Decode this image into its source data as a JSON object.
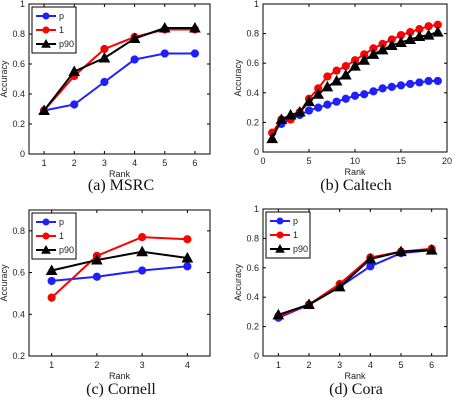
{
  "chart_data": [
    {
      "type": "line",
      "caption": "(a) MSRC",
      "xlabel": "Rank",
      "ylabel": "Accuracy",
      "xlim": [
        0.5,
        6.5
      ],
      "ylim": [
        0,
        1
      ],
      "xticks": [
        1,
        2,
        3,
        4,
        5,
        6
      ],
      "yticks": [
        0,
        0.2,
        0.4,
        0.6,
        0.8,
        1
      ],
      "ytick_labels": [
        "0",
        "0.2",
        "0.4",
        "0.6",
        "0.8",
        "1"
      ],
      "legend_position": "top-left",
      "series": [
        {
          "name": "p",
          "color": "#1f1fff",
          "marker": "circle",
          "x": [
            1,
            2,
            3,
            4,
            5,
            6
          ],
          "y": [
            0.29,
            0.33,
            0.48,
            0.63,
            0.67,
            0.67
          ]
        },
        {
          "name": "1",
          "color": "#ff0000",
          "marker": "circle",
          "x": [
            1,
            2,
            3,
            4,
            5,
            6
          ],
          "y": [
            0.29,
            0.52,
            0.7,
            0.78,
            0.83,
            0.83
          ]
        },
        {
          "name": "p90",
          "color": "#000000",
          "marker": "triangle",
          "x": [
            1,
            2,
            3,
            4,
            5,
            6
          ],
          "y": [
            0.29,
            0.55,
            0.64,
            0.77,
            0.84,
            0.84
          ]
        }
      ]
    },
    {
      "type": "line",
      "caption": "(b) Caltech",
      "xlabel": "Rank",
      "ylabel": "Accuracy",
      "xlim": [
        0,
        20
      ],
      "ylim": [
        0,
        1
      ],
      "xticks": [
        0,
        5,
        10,
        15,
        20
      ],
      "yticks": [
        0,
        0.2,
        0.4,
        0.6,
        0.8,
        1
      ],
      "ytick_labels": [
        "0",
        "0.2",
        "0.4",
        "0.6",
        "0.8",
        "1"
      ],
      "legend_position": "none",
      "series": [
        {
          "name": "p",
          "color": "#1f1fff",
          "marker": "circle",
          "x": [
            1,
            2,
            3,
            4,
            5,
            6,
            7,
            8,
            9,
            10,
            11,
            12,
            13,
            14,
            15,
            16,
            17,
            18,
            19
          ],
          "y": [
            0.13,
            0.19,
            0.22,
            0.25,
            0.28,
            0.3,
            0.32,
            0.34,
            0.36,
            0.38,
            0.39,
            0.41,
            0.43,
            0.44,
            0.45,
            0.46,
            0.47,
            0.48,
            0.48
          ]
        },
        {
          "name": "1",
          "color": "#ff0000",
          "marker": "circle",
          "x": [
            1,
            2,
            3,
            4,
            5,
            6,
            7,
            8,
            9,
            10,
            11,
            12,
            13,
            14,
            15,
            16,
            17,
            18,
            19
          ],
          "y": [
            0.13,
            0.22,
            0.22,
            0.27,
            0.36,
            0.43,
            0.51,
            0.55,
            0.58,
            0.62,
            0.66,
            0.7,
            0.73,
            0.76,
            0.79,
            0.81,
            0.83,
            0.85,
            0.86
          ]
        },
        {
          "name": "p90",
          "color": "#000000",
          "marker": "triangle",
          "x": [
            1,
            2,
            3,
            4,
            5,
            6,
            7,
            8,
            9,
            10,
            11,
            12,
            13,
            14,
            15,
            16,
            17,
            18,
            19
          ],
          "y": [
            0.09,
            0.22,
            0.25,
            0.27,
            0.34,
            0.39,
            0.44,
            0.48,
            0.52,
            0.58,
            0.62,
            0.66,
            0.69,
            0.72,
            0.74,
            0.76,
            0.78,
            0.79,
            0.81
          ]
        }
      ]
    },
    {
      "type": "line",
      "caption": "(c) Cornell",
      "xlabel": "Rank",
      "ylabel": "Accuracy",
      "xlim": [
        0.5,
        4.5
      ],
      "ylim": [
        0.2,
        0.9
      ],
      "xticks": [
        1,
        2,
        3,
        4
      ],
      "yticks": [
        0.2,
        0.4,
        0.6,
        0.8
      ],
      "ytick_labels": [
        "0.2",
        "0.4",
        "0.6",
        "0.8"
      ],
      "legend_position": "top-left",
      "series": [
        {
          "name": "p",
          "color": "#1f1fff",
          "marker": "circle",
          "x": [
            1,
            2,
            3,
            4
          ],
          "y": [
            0.56,
            0.58,
            0.61,
            0.63
          ]
        },
        {
          "name": "1",
          "color": "#ff0000",
          "marker": "circle",
          "x": [
            1,
            2,
            3,
            4
          ],
          "y": [
            0.48,
            0.68,
            0.77,
            0.76
          ]
        },
        {
          "name": "p90",
          "color": "#000000",
          "marker": "triangle",
          "x": [
            1,
            2,
            3,
            4
          ],
          "y": [
            0.61,
            0.66,
            0.7,
            0.67
          ]
        }
      ]
    },
    {
      "type": "line",
      "caption": "(d) Cora",
      "xlabel": "Rank",
      "ylabel": "Accuracy",
      "xlim": [
        0.5,
        6.5
      ],
      "ylim": [
        0,
        1
      ],
      "xticks": [
        1,
        2,
        3,
        4,
        5,
        6
      ],
      "yticks": [
        0,
        0.2,
        0.4,
        0.6,
        0.8,
        1
      ],
      "ytick_labels": [
        "0",
        "0.2",
        "0.4",
        "0.6",
        "0.8",
        "1"
      ],
      "legend_position": "top-left",
      "series": [
        {
          "name": "p",
          "color": "#1f1fff",
          "marker": "circle",
          "x": [
            1,
            2,
            3,
            4,
            5,
            6
          ],
          "y": [
            0.26,
            0.35,
            0.47,
            0.61,
            0.7,
            0.72
          ]
        },
        {
          "name": "1",
          "color": "#ff0000",
          "marker": "circle",
          "x": [
            1,
            2,
            3,
            4,
            5,
            6
          ],
          "y": [
            0.27,
            0.35,
            0.49,
            0.67,
            0.71,
            0.73
          ]
        },
        {
          "name": "p90",
          "color": "#000000",
          "marker": "triangle",
          "x": [
            1,
            2,
            3,
            4,
            5,
            6
          ],
          "y": [
            0.28,
            0.35,
            0.47,
            0.66,
            0.71,
            0.72
          ]
        }
      ]
    }
  ]
}
